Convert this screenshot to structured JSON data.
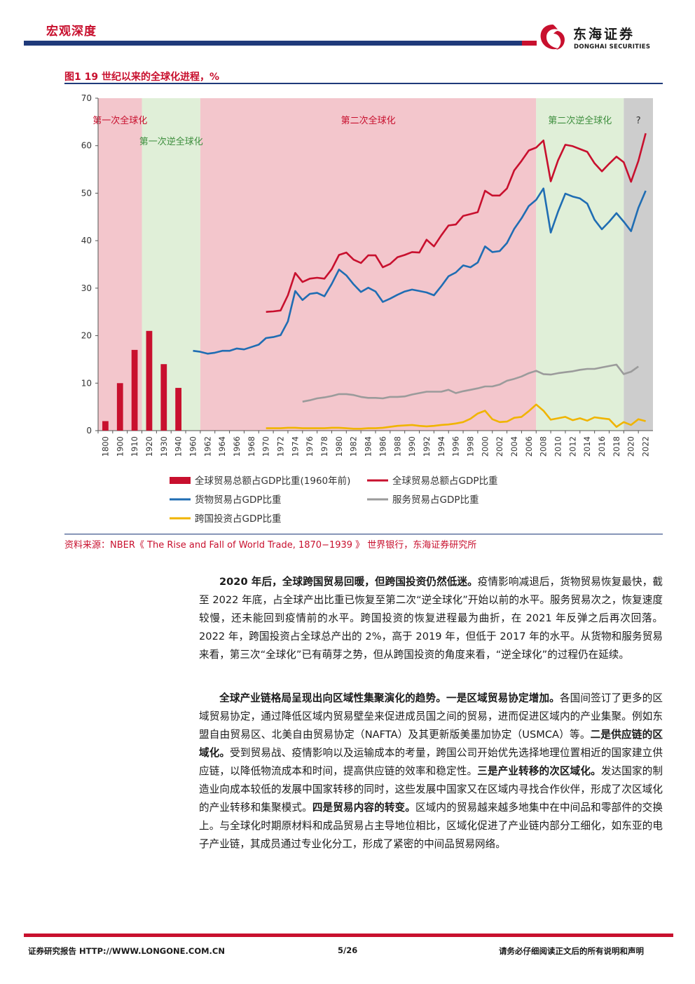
{
  "header": {
    "section_title": "宏观深度",
    "logo_cn": "东海证券",
    "logo_en": "DONGHAI SECURITIES"
  },
  "figure": {
    "title": "图1  19 世纪以来的全球化进程，%",
    "source": "资料来源：NBER《 The Rise and Fall of World Trade, 1870−1939 》 世界银行，东海证券研究所"
  },
  "chart_data": {
    "type": "line",
    "ylim": [
      0,
      70
    ],
    "yticks": [
      0,
      10,
      20,
      30,
      40,
      50,
      60,
      70
    ],
    "xlabels": [
      "1800",
      "1900",
      "1910",
      "1920",
      "1930",
      "1940",
      "1960",
      "1962",
      "1964",
      "1966",
      "1968",
      "1970",
      "1972",
      "1974",
      "1976",
      "1978",
      "1980",
      "1982",
      "1984",
      "1986",
      "1988",
      "1990",
      "1992",
      "1994",
      "1996",
      "1998",
      "2000",
      "2002",
      "2004",
      "2006",
      "2008",
      "2010",
      "2012",
      "2014",
      "2016",
      "2018",
      "2020",
      "2022"
    ],
    "eras": [
      {
        "label": "第一次全球化",
        "start": "1800",
        "end": "1920",
        "color": "#f3c6cc",
        "text_color": "#c8102e"
      },
      {
        "label": "第一次逆全球化",
        "start": "1920",
        "end": "1962",
        "color": "#e0efd8",
        "text_color": "#3f8f3f"
      },
      {
        "label": "第二次全球化",
        "start": "1962",
        "end": "2008",
        "color": "#f3c6cc",
        "text_color": "#c8102e"
      },
      {
        "label": "第二次逆全球化",
        "start": "2008",
        "end": "2020",
        "color": "#e0efd8",
        "text_color": "#3f8f3f"
      },
      {
        "label": "?",
        "start": "2020",
        "end": "2023",
        "color": "#cdcdcd",
        "text_color": "#333333"
      }
    ],
    "bars": {
      "name": "全球贸易总额占GDP比重(1960年前)",
      "color": "#c8102e",
      "categories": [
        "1800",
        "1900",
        "1910",
        "1920",
        "1930",
        "1940"
      ],
      "values": [
        2,
        10,
        17,
        21,
        14,
        9
      ]
    },
    "series": [
      {
        "name": "全球贸易总额占GDP比重",
        "color": "#c8102e",
        "start_year": 1970,
        "values": [
          25.0,
          25.1,
          25.3,
          28.5,
          33.2,
          31.3,
          32.0,
          32.2,
          32.0,
          34.0,
          37.0,
          37.5,
          36.0,
          35.3,
          36.9,
          36.9,
          34.4,
          35.1,
          36.5,
          37.0,
          37.6,
          37.5,
          40.2,
          38.8,
          41.1,
          43.2,
          43.4,
          45.2,
          45.6,
          46.0,
          50.5,
          49.5,
          49.5,
          51.0,
          54.8,
          56.8,
          59.0,
          59.6,
          61.1,
          52.5,
          56.9,
          60.2,
          59.9,
          59.3,
          58.7,
          56.3,
          54.6,
          56.2,
          57.7,
          56.5,
          52.4,
          56.8,
          62.6
        ]
      },
      {
        "name": "货物贸易占GDP比重",
        "color": "#1f6db3",
        "start_year": 1960,
        "values": [
          16.8,
          16.6,
          16.2,
          16.4,
          16.8,
          16.8,
          17.3,
          17.1,
          17.6,
          18.1,
          19.5,
          19.7,
          20.1,
          23.0,
          29.4,
          27.5,
          28.8,
          29.0,
          28.3,
          30.9,
          33.9,
          32.7,
          30.8,
          29.2,
          30.1,
          29.3,
          27.1,
          27.8,
          28.6,
          29.3,
          29.7,
          29.4,
          29.1,
          28.5,
          30.4,
          32.5,
          33.3,
          34.8,
          34.4,
          35.4,
          38.8,
          37.6,
          37.8,
          39.5,
          42.5,
          44.7,
          47.3,
          48.6,
          51.0,
          41.7,
          46.1,
          49.9,
          49.3,
          48.9,
          47.8,
          44.4,
          42.4,
          44.0,
          45.8,
          44.0,
          42.0,
          46.9,
          50.5
        ]
      },
      {
        "name": "服务贸易占GDP比重",
        "color": "#9b9b9b",
        "start_year": 1975,
        "values": [
          6.1,
          6.4,
          6.8,
          7.0,
          7.3,
          7.7,
          7.7,
          7.5,
          7.1,
          6.9,
          6.9,
          6.8,
          7.1,
          7.1,
          7.2,
          7.6,
          7.9,
          8.2,
          8.2,
          8.2,
          8.6,
          7.9,
          8.3,
          8.6,
          8.9,
          9.3,
          9.3,
          9.7,
          10.5,
          10.9,
          11.4,
          12.1,
          12.6,
          11.9,
          11.8,
          12.1,
          12.3,
          12.5,
          12.8,
          13.0,
          13.0,
          13.3,
          13.6,
          13.9,
          11.9,
          12.4,
          13.5
        ]
      },
      {
        "name": "跨国投资占GDP比重",
        "color": "#f0b400",
        "start_year": 1970,
        "values": [
          0.5,
          0.5,
          0.5,
          0.6,
          0.6,
          0.5,
          0.5,
          0.5,
          0.5,
          0.6,
          0.6,
          0.5,
          0.4,
          0.4,
          0.5,
          0.5,
          0.6,
          0.8,
          1.0,
          1.1,
          1.2,
          1.0,
          0.9,
          1.0,
          1.2,
          1.3,
          1.5,
          1.8,
          2.5,
          3.6,
          4.2,
          2.4,
          1.8,
          1.9,
          2.7,
          2.9,
          4.1,
          5.5,
          4.2,
          2.3,
          2.6,
          2.9,
          2.2,
          2.6,
          2.1,
          2.8,
          2.6,
          2.4,
          0.8,
          1.8,
          1.2,
          2.4,
          2.0
        ]
      }
    ],
    "legend": {
      "placement": "bottom",
      "items": [
        {
          "label": "全球贸易总额占GDP比重(1960年前)",
          "kind": "bar",
          "color": "#c8102e"
        },
        {
          "label": "全球贸易总额占GDP比重",
          "kind": "line",
          "color": "#c8102e"
        },
        {
          "label": "货物贸易占GDP比重",
          "kind": "line",
          "color": "#1f6db3"
        },
        {
          "label": "服务贸易占GDP比重",
          "kind": "line",
          "color": "#9b9b9b"
        },
        {
          "label": "跨国投资占GDP比重",
          "kind": "line",
          "color": "#f0b400"
        }
      ]
    }
  },
  "body": {
    "p1_bold": "2020 年后，全球跨国贸易回暖，但跨国投资仍然低迷。",
    "p1_text": "疫情影响减退后，货物贸易恢复最快，截至 2022 年底，占全球产出比重已恢复至第二次“逆全球化”开始以前的水平。服务贸易次之，恢复速度较慢，还未能回到疫情前的水平。跨国投资的恢复进程最为曲折，在 2021 年反弹之后再次回落。2022 年，跨国投资占全球总产出的 2%，高于 2019 年，但低于 2017 年的水平。从货物和服务贸易来看，第三次“全球化”已有萌芽之势，但从跨国投资的角度来看，“逆全球化”的过程仍在延续。",
    "p2_b1": "全球产业链格局呈现出向区域性集聚演化的趋势。一是区域贸易协定增加。",
    "p2_t1": "各国间签订了更多的区域贸易协定，通过降低区域内贸易壁垒来促进成员国之间的贸易，进而促进区域内的产业集聚。例如东盟自由贸易区、北美自由贸易协定（NAFTA）及其更新版美墨加协定（USMCA）等。",
    "p2_b2": "二是供应链的区域化。",
    "p2_t2": "受到贸易战、疫情影响以及运输成本的考量，跨国公司开始优先选择地理位置相近的国家建立供应链，以降低物流成本和时间，提高供应链的效率和稳定性。",
    "p2_b3": "三是产业转移的次区域化。",
    "p2_t3": "发达国家的制造业向成本较低的发展中国家转移的同时，这些发展中国家又在区域内寻找合作伙伴，形成了次区域化的产业转移和集聚模式。",
    "p2_b4": "四是贸易内容的转变。",
    "p2_t4": "区域内的贸易越来越多地集中在中间品和零部件的交换上。与全球化时期原材料和成品贸易占主导地位相比，区域化促进了产业链内部分工细化，如东亚的电子产业链，其成员通过专业化分工，形成了紧密的中间品贸易网络。"
  },
  "footer": {
    "left": "证券研究报告   HTTP://WWW.LONGONE.COM.CN",
    "page": "5/26",
    "right": "请务必仔细阅读正文后的所有说明和声明"
  }
}
